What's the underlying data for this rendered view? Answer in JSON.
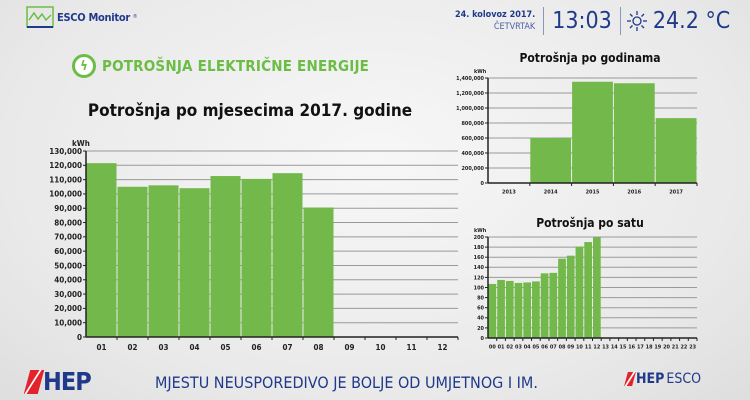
{
  "brand": {
    "name": "ESCO Monitor",
    "reg": "®"
  },
  "header": {
    "date": "24. kolovoz 2017.",
    "weekday": "ČETVRTAK",
    "time": "13:03",
    "weather_icon": "sun-icon",
    "temperature": "24.2 °C"
  },
  "section_title": "POTROŠNJA ELEKTRIČNE ENERGIJE",
  "colors": {
    "bar": "#72b84a",
    "accent": "#6cbd45",
    "brand": "#1f3a8a",
    "red": "#e3232b"
  },
  "chart_data": [
    {
      "id": "monthly",
      "type": "bar",
      "title": "Potrošnja po mjesecima 2017. godine",
      "ylabel": "kWh",
      "ylim": [
        0,
        130000
      ],
      "ystep": 10000,
      "categories": [
        "01",
        "02",
        "03",
        "04",
        "05",
        "06",
        "07",
        "08",
        "09",
        "10",
        "11",
        "12"
      ],
      "values": [
        121500,
        105000,
        106000,
        104000,
        112500,
        110500,
        114500,
        90500,
        null,
        null,
        null,
        null
      ]
    },
    {
      "id": "yearly",
      "type": "bar",
      "title": "Potrošnja po godinama",
      "ylabel": "kWh",
      "ylim": [
        0,
        1400000
      ],
      "ystep": 200000,
      "categories": [
        "2013",
        "2014",
        "2015",
        "2016",
        "2017"
      ],
      "values": [
        0,
        600000,
        1350000,
        1330000,
        865000
      ]
    },
    {
      "id": "hourly",
      "type": "bar",
      "title": "Potrošnja po satu",
      "ylabel": "kWh",
      "ylim": [
        0,
        200
      ],
      "ystep": 20,
      "categories": [
        "00",
        "01",
        "02",
        "03",
        "04",
        "05",
        "06",
        "07",
        "08",
        "09",
        "10",
        "11",
        "12",
        "13",
        "14",
        "15",
        "16",
        "17",
        "18",
        "19",
        "20",
        "21",
        "22",
        "23"
      ],
      "values": [
        107,
        115,
        113,
        109,
        110,
        112,
        128,
        129,
        157,
        163,
        181,
        190,
        199,
        null,
        null,
        null,
        null,
        null,
        null,
        null,
        null,
        null,
        null,
        null
      ]
    }
  ],
  "footer": {
    "hep_logo": "HEP",
    "slogan": "MJESTU NEUSPOREDIVO JE BOLJE OD UMJETNOG I IM.",
    "hepesco_hep": "HEP",
    "hepesco_esco": "ESCO"
  }
}
